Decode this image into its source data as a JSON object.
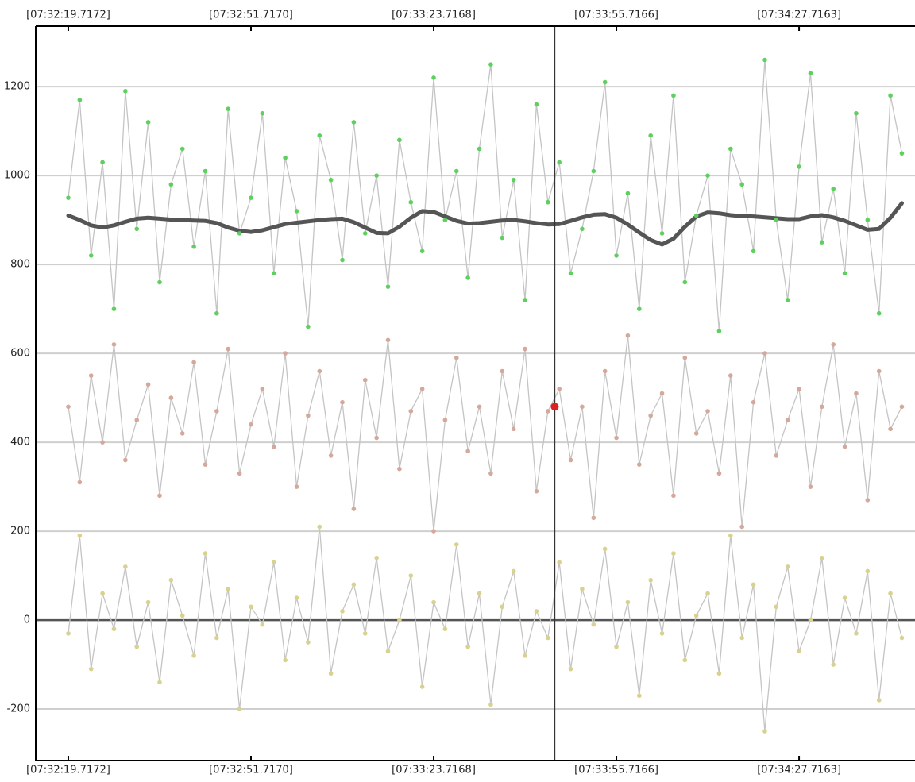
{
  "chart_data": {
    "type": "line",
    "xlim": [
      -5.7,
      148.3
    ],
    "ylim": [
      -316,
      1336
    ],
    "xticks": [
      {
        "value": 0,
        "label": "[07:32:19.7172]"
      },
      {
        "value": 31.9998,
        "label": "[07:32:51.7170]"
      },
      {
        "value": 63.9996,
        "label": "[07:33:23.7168]"
      },
      {
        "value": 95.9994,
        "label": "[07:33:55.7166]"
      },
      {
        "value": 127.9991,
        "label": "[07:34:27.7163]"
      }
    ],
    "yticks": [
      -200,
      0,
      200,
      400,
      600,
      800,
      1000,
      1200
    ],
    "grid": true,
    "zero_line": true,
    "line_color": "#c4c4c4",
    "x": [
      0,
      2,
      4,
      6,
      8,
      10,
      12,
      14,
      16,
      18,
      20,
      22,
      24,
      26,
      28,
      30,
      32,
      34,
      36,
      38,
      40,
      42,
      44,
      46,
      48,
      50,
      52,
      54,
      56,
      58,
      60,
      62,
      64,
      66,
      68,
      70,
      72,
      74,
      76,
      78,
      80,
      82,
      84,
      86,
      88,
      90,
      92,
      94,
      96,
      98,
      100,
      102,
      104,
      106,
      108,
      110,
      112,
      114,
      116,
      118,
      120,
      122,
      124,
      126,
      128,
      130,
      132,
      134,
      136,
      138,
      140,
      142,
      144,
      146
    ],
    "series": [
      {
        "color": "#5fcf5f",
        "markers": true,
        "values": [
          950,
          1170,
          820,
          1030,
          700,
          1190,
          880,
          1120,
          760,
          980,
          1060,
          840,
          1010,
          690,
          1150,
          870,
          950,
          1140,
          780,
          1040,
          920,
          660,
          1090,
          990,
          810,
          1120,
          870,
          1000,
          750,
          1080,
          940,
          830,
          1220,
          900,
          1010,
          770,
          1060,
          1250,
          860,
          990,
          720,
          1160,
          940,
          1030,
          780,
          880,
          1010,
          1210,
          820,
          960,
          700,
          1090,
          870,
          1180,
          760,
          910,
          1000,
          650,
          1060,
          980,
          830,
          1260,
          900,
          720,
          1020,
          1230,
          850,
          970,
          780,
          1140,
          900,
          690,
          1180,
          1050
        ]
      },
      {
        "color": "#d4a89a",
        "markers": true,
        "values": [
          480,
          310,
          550,
          400,
          620,
          360,
          450,
          530,
          280,
          500,
          420,
          580,
          350,
          470,
          610,
          330,
          440,
          520,
          390,
          600,
          300,
          460,
          560,
          370,
          490,
          250,
          540,
          410,
          630,
          340,
          470,
          520,
          200,
          450,
          590,
          380,
          480,
          330,
          560,
          430,
          610,
          290,
          470,
          520,
          360,
          480,
          230,
          560,
          410,
          640,
          350,
          460,
          510,
          280,
          590,
          420,
          470,
          330,
          550,
          210,
          490,
          600,
          370,
          450,
          520,
          300,
          480,
          620,
          390,
          510,
          270,
          560,
          430,
          480
        ]
      },
      {
        "color": "#d9d28f",
        "markers": true,
        "values": [
          -30,
          190,
          -110,
          60,
          -20,
          120,
          -60,
          40,
          -140,
          90,
          10,
          -80,
          150,
          -40,
          70,
          -200,
          30,
          -10,
          130,
          -90,
          50,
          -50,
          210,
          -120,
          20,
          80,
          -30,
          140,
          -70,
          0,
          100,
          -150,
          40,
          -20,
          170,
          -60,
          60,
          -190,
          30,
          110,
          -80,
          20,
          -40,
          130,
          -110,
          70,
          -10,
          160,
          -60,
          40,
          -170,
          90,
          -30,
          150,
          -90,
          10,
          60,
          -120,
          190,
          -40,
          80,
          -250,
          30,
          120,
          -70,
          0,
          140,
          -100,
          50,
          -30,
          110,
          -180,
          60,
          -40
        ]
      },
      {
        "color": "#555555",
        "markers": false,
        "values": [
          910,
          900,
          888,
          883,
          888,
          896,
          903,
          905,
          903,
          901,
          900,
          899,
          898,
          893,
          883,
          876,
          873,
          877,
          884,
          891,
          894,
          897,
          900,
          902,
          903,
          895,
          883,
          871,
          870,
          885,
          905,
          920,
          918,
          908,
          898,
          892,
          893,
          896,
          899,
          900,
          897,
          893,
          890,
          891,
          898,
          906,
          912,
          913,
          905,
          890,
          872,
          855,
          845,
          858,
          885,
          908,
          917,
          915,
          911,
          909,
          908,
          906,
          904,
          902,
          902,
          908,
          911,
          906,
          898,
          888,
          878,
          880,
          905,
          938
        ]
      }
    ],
    "cursor": {
      "x": 85.2,
      "y": 480,
      "color": "#e02020"
    }
  }
}
